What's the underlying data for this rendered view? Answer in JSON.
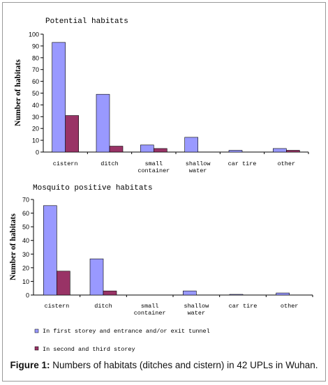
{
  "caption": {
    "label": "Figure 1:",
    "text": " Numbers of habitats (ditches and cistern) in 42 UPLs in Wuhan."
  },
  "colors": {
    "series1": "#9999ff",
    "series2": "#993366",
    "axis": "#000000",
    "frame": "#9a9a9a"
  },
  "chart_data": [
    {
      "type": "bar",
      "title": "Potential habitats",
      "ylabel": "Number of habitats",
      "ylim": [
        0,
        100
      ],
      "yticks": [
        0,
        10,
        20,
        30,
        40,
        50,
        60,
        70,
        80,
        90,
        100
      ],
      "categories": [
        [
          "cistern"
        ],
        [
          "ditch"
        ],
        [
          "small",
          "container"
        ],
        [
          "shallow",
          "water"
        ],
        [
          "car tire"
        ],
        [
          "other"
        ]
      ],
      "series": [
        {
          "values": [
            93,
            49,
            6,
            12.5,
            1.5,
            3
          ]
        },
        {
          "values": [
            31,
            5,
            3,
            0,
            0,
            1.5
          ]
        }
      ],
      "grid": false
    },
    {
      "type": "bar",
      "title": "Mosquito positive habitats",
      "ylabel": "Number of habitats",
      "ylim": [
        0,
        70
      ],
      "yticks": [
        0,
        10,
        20,
        30,
        40,
        50,
        60,
        70
      ],
      "categories": [
        [
          "cistern"
        ],
        [
          "ditch"
        ],
        [
          "small",
          "container"
        ],
        [
          "shallow",
          "water"
        ],
        [
          "car tire"
        ],
        [
          "other"
        ]
      ],
      "series": [
        {
          "values": [
            65.5,
            26.5,
            0,
            3,
            0.5,
            1.5
          ]
        },
        {
          "values": [
            17.5,
            3,
            0,
            0,
            0,
            0
          ]
        }
      ],
      "grid": false
    }
  ],
  "legend": [
    {
      "label": "In first storey and entrance and/or exit tunnel"
    },
    {
      "label": "In second and third storey"
    }
  ]
}
